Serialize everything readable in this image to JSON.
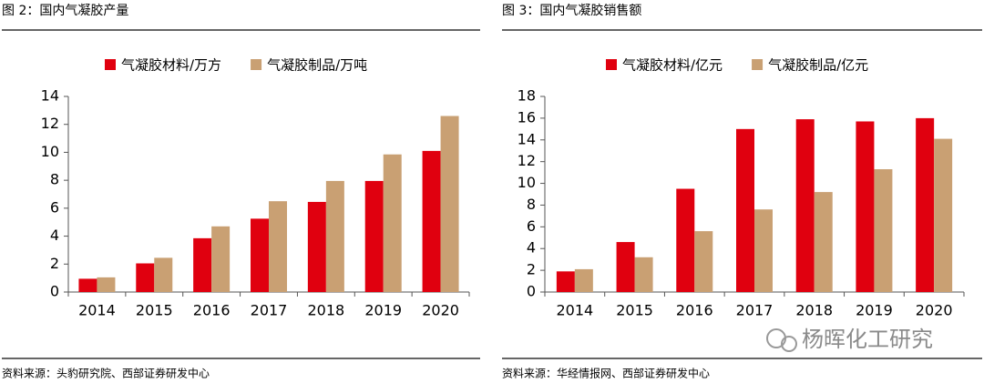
{
  "chart_data": [
    {
      "type": "bar",
      "title": "图 2：国内气凝胶产量",
      "source": "资料来源：头豹研究院、西部证券研发中心",
      "categories": [
        "2014",
        "2015",
        "2016",
        "2017",
        "2018",
        "2019",
        "2020"
      ],
      "series": [
        {
          "name": "气凝胶材料/万方",
          "color": "#e0000f",
          "values": [
            0.95,
            2.05,
            3.85,
            5.25,
            6.45,
            7.95,
            10.1
          ]
        },
        {
          "name": "气凝胶制品/万吨",
          "color": "#c9a073",
          "values": [
            1.05,
            2.45,
            4.7,
            6.5,
            7.95,
            9.85,
            12.6
          ]
        }
      ],
      "ylim": [
        0,
        14
      ],
      "yticks": [
        0,
        2,
        4,
        6,
        8,
        10,
        12,
        14
      ],
      "grid": false,
      "legend": "top"
    },
    {
      "type": "bar",
      "title": "图 3：国内气凝胶销售额",
      "source": "资料来源：华经情报网、西部证券研发中心",
      "categories": [
        "2014",
        "2015",
        "2016",
        "2017",
        "2018",
        "2019",
        "2020"
      ],
      "series": [
        {
          "name": "气凝胶材料/亿元",
          "color": "#e0000f",
          "values": [
            1.9,
            4.6,
            9.5,
            15.0,
            15.9,
            15.7,
            16.0
          ]
        },
        {
          "name": "气凝胶制品/亿元",
          "color": "#c9a073",
          "values": [
            2.1,
            3.2,
            5.6,
            7.6,
            9.2,
            11.3,
            14.1
          ]
        }
      ],
      "ylim": [
        0,
        18
      ],
      "yticks": [
        0,
        2,
        4,
        6,
        8,
        10,
        12,
        14,
        16,
        18
      ],
      "grid": false,
      "legend": "top"
    }
  ],
  "watermark": "杨晖化工研究"
}
